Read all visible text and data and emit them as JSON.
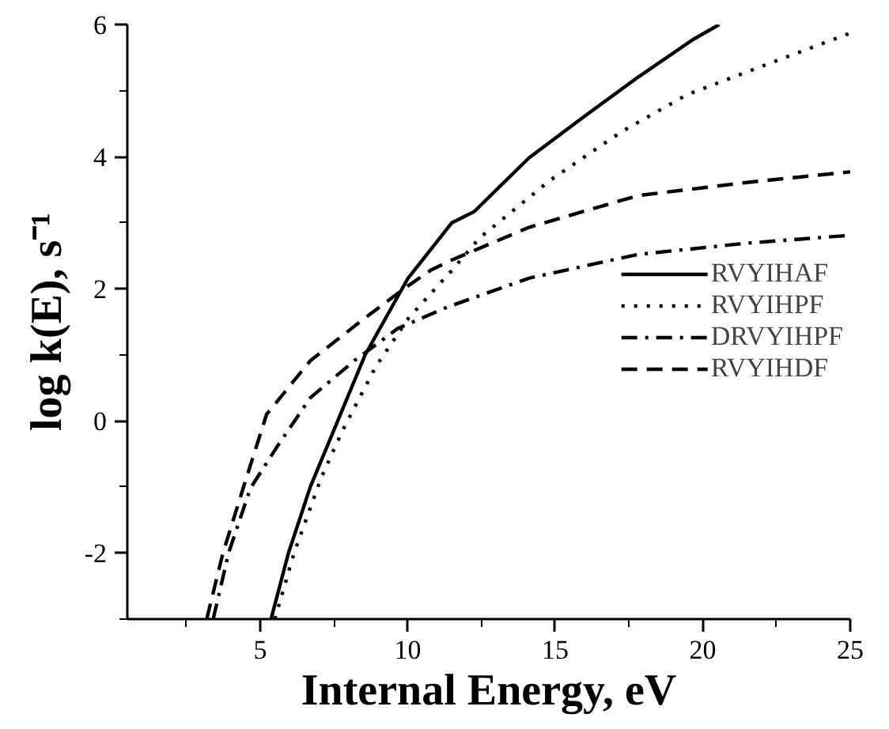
{
  "chart_data": {
    "type": "line",
    "xlabel": "Internal Energy, eV",
    "ylabel": "log k(E), s⁻¹",
    "xlim": [
      0.5,
      25
    ],
    "ylim": [
      -3,
      6
    ],
    "xticks": [
      5,
      10,
      15,
      20,
      25
    ],
    "yticks": [
      -2,
      0,
      2,
      4,
      6
    ],
    "grid": false,
    "legend": "right",
    "marker": "none",
    "series": [
      {
        "name": "RVYIHAF",
        "color": "#000000",
        "line_style": "solid",
        "x": [
          5.37,
          5.96,
          6.7,
          7.63,
          8.56,
          10.0,
          11.5,
          12.26,
          14.11,
          15.96,
          17.8,
          19.66,
          20.56
        ],
        "values": [
          -3.0,
          -2.0,
          -1.0,
          0.0,
          1.0,
          2.15,
          3.0,
          3.17,
          3.98,
          4.6,
          5.2,
          5.77,
          6.0
        ]
      },
      {
        "name": "RVYIHPF",
        "color": "#000000",
        "line_style": "dotted",
        "x": [
          5.5,
          6.15,
          7.07,
          7.8,
          8.93,
          10.04,
          11.5,
          12.44,
          14.85,
          17.26,
          19.48,
          21.9,
          25.0
        ],
        "values": [
          -3.0,
          -2.0,
          -0.86,
          -0.14,
          0.83,
          1.56,
          2.28,
          2.77,
          3.65,
          4.38,
          4.94,
          5.35,
          5.87
        ]
      },
      {
        "name": "DRVYIHPF",
        "color": "#000000",
        "line_style": "dashdot",
        "x": [
          3.41,
          3.93,
          4.67,
          5.59,
          6.7,
          8.19,
          9.67,
          11.33,
          14.11,
          17.8,
          21.5,
          25.0
        ],
        "values": [
          -3.0,
          -2.0,
          -1.02,
          -0.38,
          0.35,
          0.91,
          1.4,
          1.72,
          2.16,
          2.52,
          2.69,
          2.81
        ]
      },
      {
        "name": "RVYIHDF",
        "color": "#000000",
        "line_style": "dashed",
        "x": [
          3.19,
          3.74,
          4.48,
          5.22,
          6.7,
          8.56,
          10.0,
          10.78,
          11.52,
          14.11,
          17.8,
          21.5,
          25.0
        ],
        "values": [
          -3.0,
          -2.0,
          -0.94,
          0.1,
          0.91,
          1.56,
          2.04,
          2.28,
          2.44,
          2.93,
          3.41,
          3.61,
          3.77
        ]
      }
    ]
  }
}
